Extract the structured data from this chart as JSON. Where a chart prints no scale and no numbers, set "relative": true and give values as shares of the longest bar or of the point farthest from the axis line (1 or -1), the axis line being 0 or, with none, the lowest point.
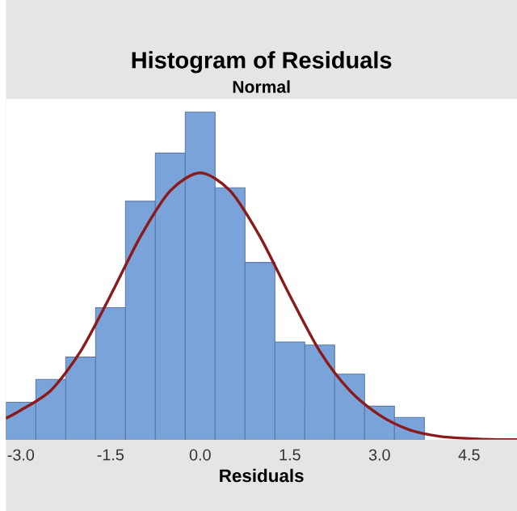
{
  "chart_data": {
    "type": "histogram",
    "title": "Histogram of Residuals",
    "subtitle": "Normal",
    "xlabel": "Residuals",
    "relative": true,
    "bins": [
      -3.25,
      -2.75,
      -2.25,
      -1.75,
      -1.25,
      -0.75,
      -0.25,
      0.25,
      0.75,
      1.25,
      1.75,
      2.25,
      2.75,
      3.25,
      3.75
    ],
    "values": [
      0.114,
      0.184,
      0.252,
      0.403,
      0.728,
      0.875,
      1,
      0.769,
      0.541,
      0.298,
      0.289,
      0.2,
      0.102,
      0.068
    ],
    "color": "#7aa3da",
    "series": [
      {
        "type": "line",
        "color": "#8b1a1a",
        "x": [
          -3.25,
          -3.0,
          -2.5,
          -2.0,
          -1.5,
          -1.0,
          -0.5,
          0.0,
          0.5,
          1.0,
          1.5,
          2.0,
          2.5,
          3.0,
          3.5,
          4.0,
          4.5,
          5.0,
          5.3
        ],
        "values": [
          0.065,
          0.09,
          0.15,
          0.27,
          0.44,
          0.62,
          0.76,
          0.815,
          0.76,
          0.62,
          0.44,
          0.27,
          0.15,
          0.075,
          0.03,
          0.01,
          0.003,
          0.0,
          0.0
        ]
      }
    ],
    "xlim": [
      -3.25,
      5.3
    ],
    "xticks": [
      {
        "value": -3.0,
        "label": "-3.0"
      },
      {
        "value": -1.5,
        "label": "-1.5"
      },
      {
        "value": 0.0,
        "label": "0.0"
      },
      {
        "value": 1.5,
        "label": "1.5"
      },
      {
        "value": 3.0,
        "label": "3.0"
      },
      {
        "value": 4.5,
        "label": "4.5"
      }
    ]
  }
}
